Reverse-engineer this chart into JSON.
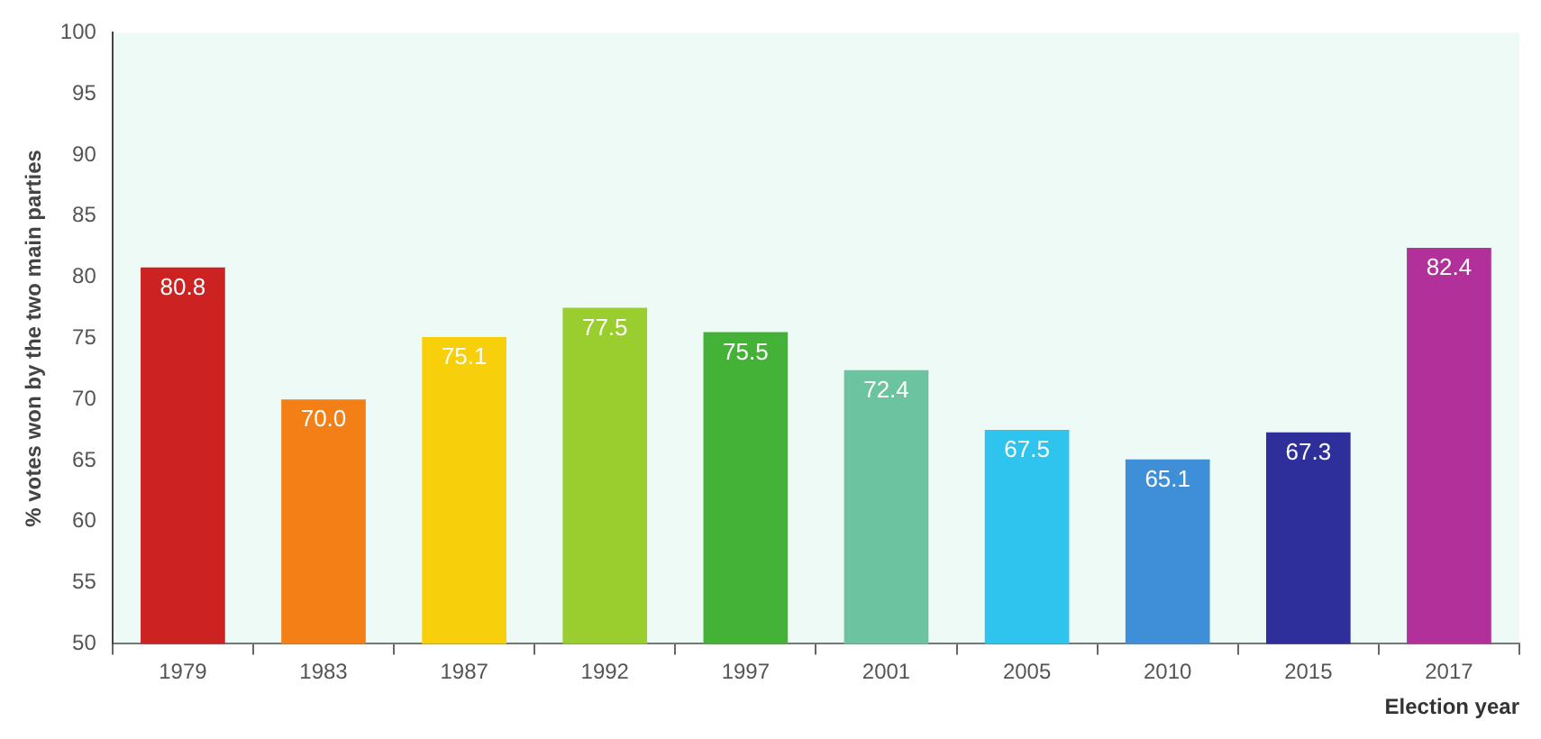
{
  "chart_data": {
    "type": "bar",
    "xlabel": "Election year",
    "ylabel": "% votes won by the two main parties",
    "categories": [
      "1979",
      "1983",
      "1987",
      "1992",
      "1997",
      "2001",
      "2005",
      "2010",
      "2015",
      "2017"
    ],
    "values": [
      80.8,
      70.0,
      75.1,
      77.5,
      75.5,
      72.4,
      67.5,
      65.1,
      67.3,
      82.4
    ],
    "colors": [
      "#cc2222",
      "#f57f17",
      "#f7cf0a",
      "#9acd2e",
      "#44b236",
      "#6cc3a0",
      "#2ec4ee",
      "#3f8fd8",
      "#2e2f9a",
      "#b2309a"
    ],
    "value_labels": [
      "80.8",
      "70.0",
      "75.1",
      "77.5",
      "75.5",
      "72.4",
      "67.5",
      "65.1",
      "67.3",
      "82.4"
    ],
    "ylim": [
      50,
      100
    ],
    "yticks": [
      50,
      55,
      60,
      65,
      70,
      75,
      80,
      85,
      90,
      95,
      100
    ],
    "grid": false,
    "legend": false
  }
}
